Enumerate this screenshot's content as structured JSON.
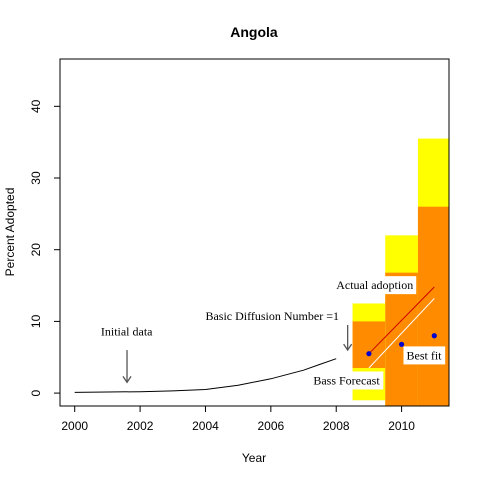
{
  "chart_data": {
    "type": "line",
    "title": "Angola",
    "xlabel": "Year",
    "ylabel": "Percent Adopted",
    "xlim": [
      1999.55,
      2011.45
    ],
    "ylim": [
      -1.8,
      46.6
    ],
    "x_ticks": [
      2000,
      2002,
      2004,
      2006,
      2008,
      2010
    ],
    "y_ticks": [
      0,
      10,
      20,
      30,
      40
    ],
    "grid": false,
    "colors": {
      "band_outer": "#ffff00",
      "band_inner": "#ff8c00",
      "bass_curve": "#000000",
      "actual_line": "#cc0000",
      "best_fit_line": "#ffffff",
      "points": "#0000cc",
      "arrow": "#555555"
    },
    "bass_forecast": {
      "name": "Bass Forecast",
      "x": [
        2000.0,
        2001.0,
        2002.0,
        2003.0,
        2004.0,
        2005.0,
        2006.0,
        2007.0,
        2007.5,
        2008.0
      ],
      "y": [
        0.1,
        0.15,
        0.2,
        0.3,
        0.5,
        1.1,
        2.0,
        3.2,
        4.0,
        4.8
      ]
    },
    "forecast_bands": [
      {
        "x0": 2008.5,
        "x1": 2009.5,
        "outer": [
          -1.0,
          12.5
        ],
        "inner": [
          3.5,
          10.0
        ]
      },
      {
        "x0": 2009.5,
        "x1": 2010.5,
        "outer": [
          -1.8,
          22.0
        ],
        "inner": [
          -1.8,
          16.8
        ]
      },
      {
        "x0": 2010.5,
        "x1": 2011.45,
        "outer": [
          -1.8,
          35.5
        ],
        "inner": [
          -1.8,
          26.0
        ]
      }
    ],
    "actual_adoption": {
      "x": [
        2009.0,
        2010.0,
        2011.0
      ],
      "y": [
        5.5,
        6.8,
        8.0
      ]
    },
    "actual_adoption_line": {
      "x": [
        2009.0,
        2011.0
      ],
      "y": [
        5.5,
        14.8
      ]
    },
    "best_fit_line": {
      "x": [
        2009.0,
        2011.0
      ],
      "y": [
        3.5,
        13.2
      ]
    },
    "annotations": [
      {
        "text": "Initial data",
        "x": 2000.8,
        "y": 8.0
      },
      {
        "text": "Basic Diffusion Number =1",
        "x": 2004.0,
        "y": 10.2
      },
      {
        "text": "Actual adoption",
        "x": 2008.0,
        "y": 14.5
      },
      {
        "text": "Best fit",
        "x": 2010.15,
        "y": 4.7
      },
      {
        "text": "Bass Forecast",
        "x": 2007.3,
        "y": 1.2
      }
    ],
    "arrows": [
      {
        "name": "initial-data-arrow",
        "x": 2001.6,
        "y_from": 6.0,
        "y_to": 1.5
      },
      {
        "name": "diffusion-number-arrow",
        "x": 2008.35,
        "y_from": 9.5,
        "y_to": 6.0
      }
    ]
  }
}
